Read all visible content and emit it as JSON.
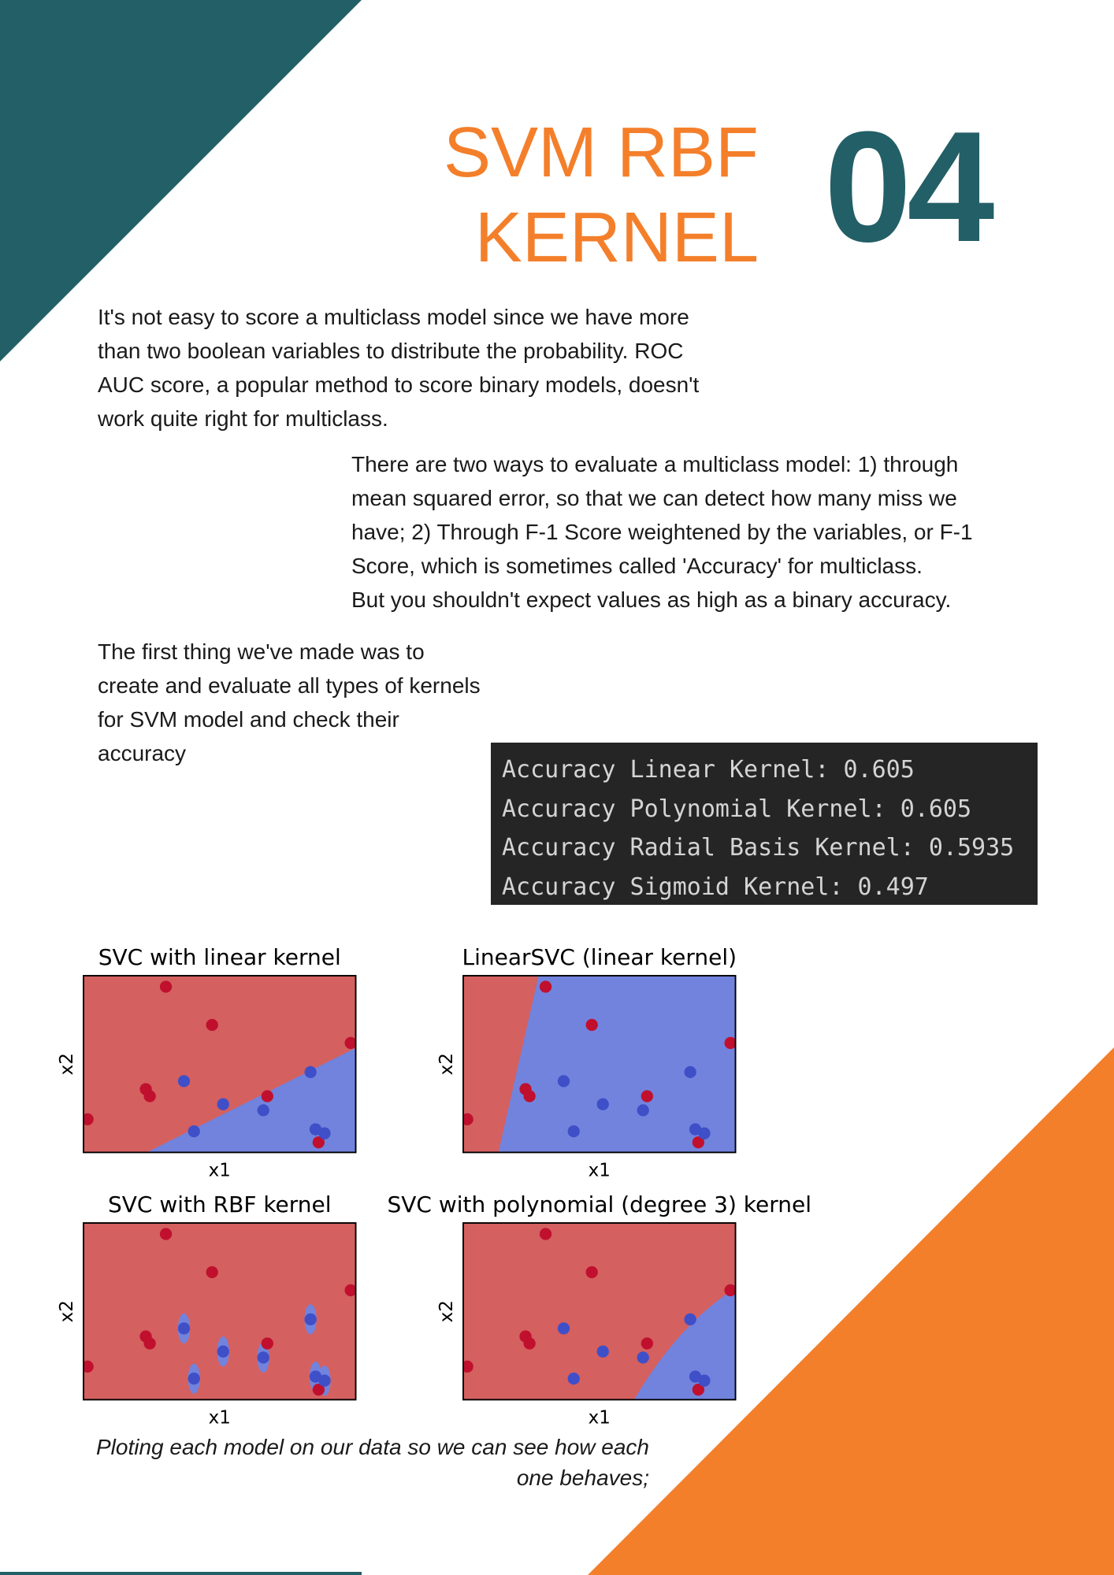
{
  "header": {
    "title_lines": [
      "SVM RBF",
      "KERNEL"
    ],
    "number": "04"
  },
  "paragraphs": [
    {
      "lines": [
        "It's not easy to score a multiclass model since we have more",
        "than two boolean variables to distribute the probability. ROC",
        "AUC score, a popular method to score binary models, doesn't",
        "work quite right for multiclass."
      ]
    },
    {
      "lines": [
        "There are two ways to evaluate a multiclass model: 1) through",
        "mean squared error, so that we can detect how many miss we",
        "have; 2) Through F-1 Score weightened by the variables, or F-1",
        "Score, which is sometimes called 'Accuracy' for multiclass.",
        "But you shouldn't expect values as high as a binary accuracy."
      ]
    },
    {
      "lines": [
        "The first thing we've made was to",
        "create and evaluate all types of kernels",
        "for SVM model and check their",
        "accuracy"
      ]
    }
  ],
  "code_output": {
    "lines": [
      "Accuracy Linear Kernel: 0.605",
      "Accuracy Polynomial Kernel: 0.605",
      "Accuracy Radial Basis Kernel: 0.5935",
      "Accuracy Sigmoid Kernel: 0.497"
    ]
  },
  "figure": {
    "panels": [
      {
        "title": "SVC with linear kernel",
        "x_label": "x1",
        "y_label": "x2"
      },
      {
        "title": "LinearSVC (linear kernel)",
        "x_label": "x1",
        "y_label": "x2"
      },
      {
        "title": "SVC with RBF kernel",
        "x_label": "x1",
        "y_label": "x2"
      },
      {
        "title": "SVC with polynomial (degree 3) kernel",
        "x_label": "x1",
        "y_label": "x2"
      }
    ],
    "caption": "Ploting each model on our data so we can see how each one behaves;"
  }
}
